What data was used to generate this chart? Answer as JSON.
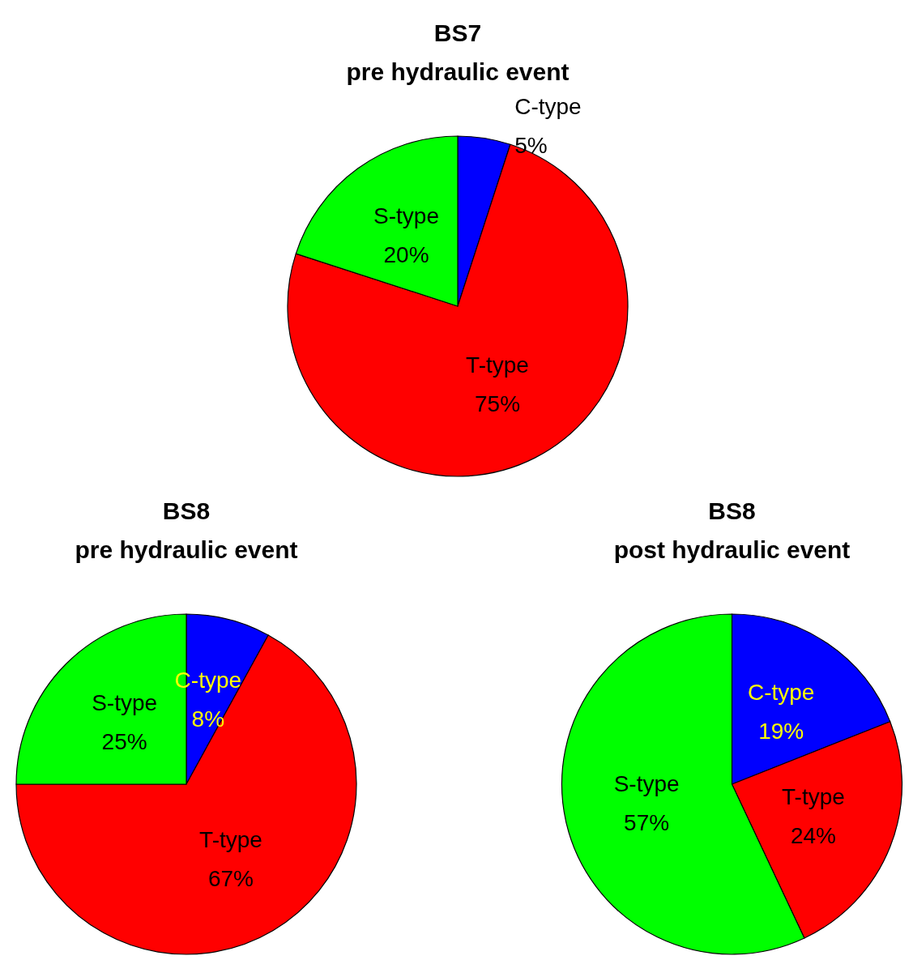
{
  "chart_data": [
    {
      "type": "pie",
      "title": "BS7",
      "subtitle": "pre hydraulic event",
      "categories": [
        "C-type",
        "T-type",
        "S-type"
      ],
      "values": [
        5,
        75,
        20
      ],
      "value_labels": [
        "5%",
        "75%",
        "20%"
      ],
      "colors": [
        "#0000ff",
        "#ff0000",
        "#00ff00"
      ],
      "legend": false
    },
    {
      "type": "pie",
      "title": "BS8",
      "subtitle": "pre hydraulic event",
      "categories": [
        "C-type",
        "T-type",
        "S-type"
      ],
      "values": [
        8,
        67,
        25
      ],
      "value_labels": [
        "8%",
        "67%",
        "25%"
      ],
      "colors": [
        "#0000ff",
        "#ff0000",
        "#00ff00"
      ],
      "legend": false
    },
    {
      "type": "pie",
      "title": "BS8",
      "subtitle": "post hydraulic event",
      "categories": [
        "C-type",
        "T-type",
        "S-type"
      ],
      "values": [
        19,
        24,
        57
      ],
      "value_labels": [
        "19%",
        "24%",
        "57%"
      ],
      "colors": [
        "#0000ff",
        "#ff0000",
        "#00ff00"
      ],
      "legend": false
    }
  ]
}
